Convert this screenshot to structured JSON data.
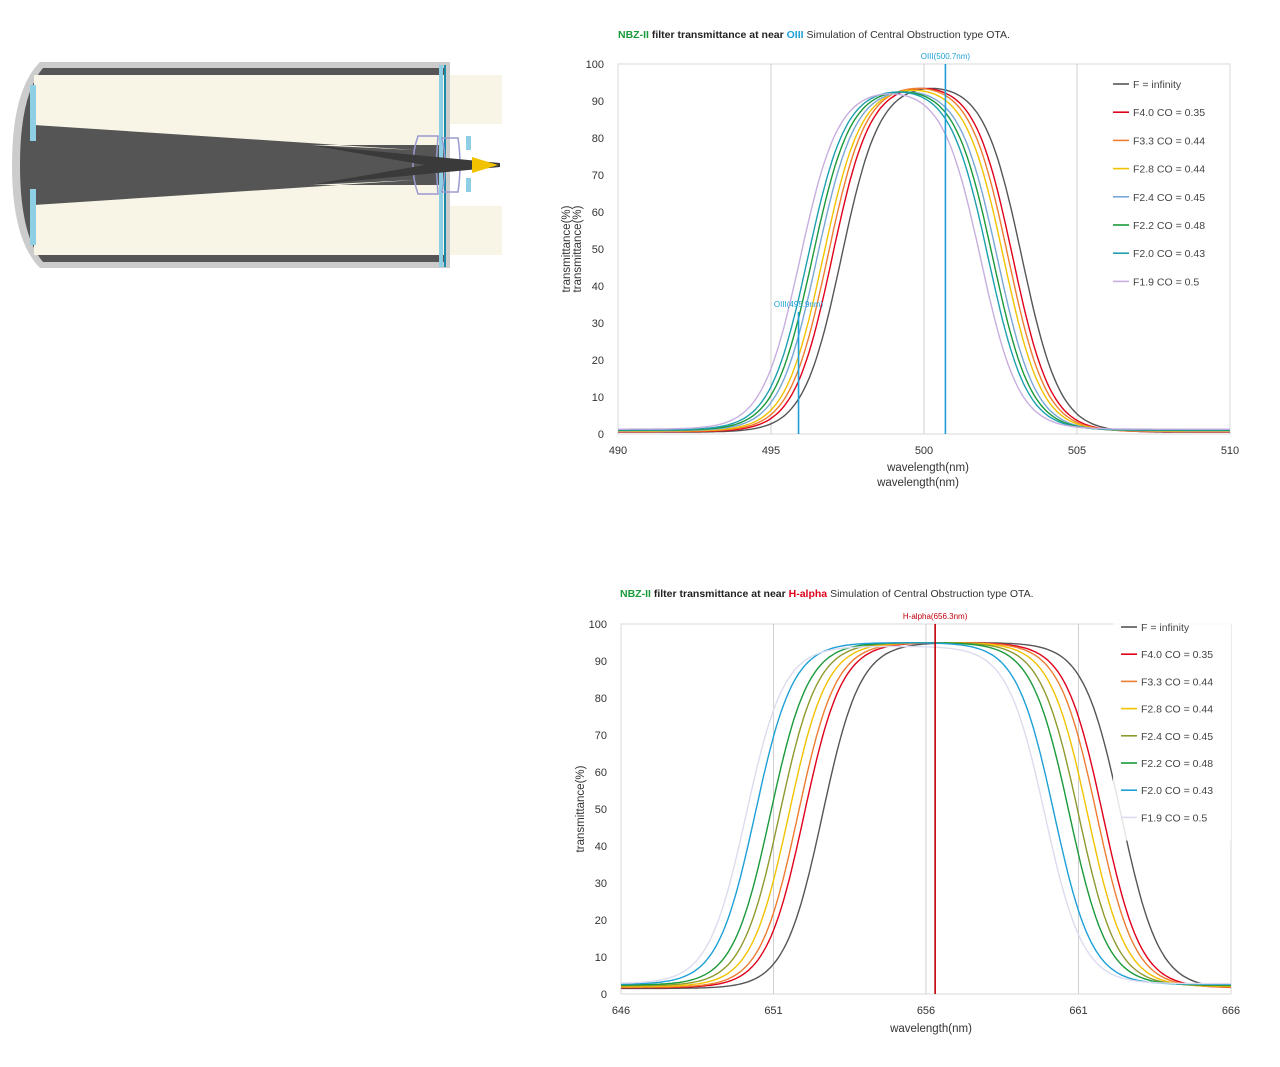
{
  "telescope": {
    "colors": {
      "tube": "#555555",
      "rim": "#cccccc",
      "beam": "#f8f5e6",
      "glass": "#8fcfe6",
      "focus": "#f2c200",
      "lens": "#9a9ad0"
    }
  },
  "chart_data": [
    {
      "type": "line",
      "title_parts": [
        {
          "text": "NBZ-II",
          "color": "#1a9a3a",
          "bold": true
        },
        {
          "text": " filter transmittance at near ",
          "color": "#222222",
          "bold": true
        },
        {
          "text": "OIII",
          "color": "#1ea0d6",
          "bold": true
        },
        {
          "text": "   Simulation of Central Obstruction type OTA.",
          "color": "#333333",
          "bold": false
        }
      ],
      "xlabel": "wavelength(nm)",
      "xlabel_repeat": "wavelength(nm)",
      "ylabel": "transmittance(%)",
      "ylabel_ghost": "transmittance(%)",
      "xlim": [
        490,
        510
      ],
      "ylim": [
        0,
        100
      ],
      "xticks": [
        490,
        495,
        500,
        505,
        510
      ],
      "yticks": [
        0,
        10,
        20,
        30,
        40,
        50,
        60,
        70,
        80,
        90,
        100
      ],
      "grid": "vertical",
      "legend_position": "right",
      "annotations": [
        {
          "label": "OIII(500.7nm)",
          "x": 500.7,
          "top": 100,
          "color": "#1ea0d6"
        },
        {
          "label": "OIII(495.9nm)",
          "x": 495.9,
          "top": 33,
          "color": "#1ea0d6"
        }
      ],
      "series": [
        {
          "name": "F = infinity",
          "color": "#555555",
          "center": 500.25,
          "peak": 95,
          "halfwidth": 2.95,
          "base": 0.5
        },
        {
          "name": "F4.0 CO = 0.35",
          "color": "#e0001b",
          "center": 499.95,
          "peak": 95,
          "halfwidth": 2.95,
          "base": 0.6
        },
        {
          "name": "F3.3 CO = 0.44",
          "color": "#ed7d31",
          "center": 499.8,
          "peak": 95,
          "halfwidth": 2.95,
          "base": 0.7
        },
        {
          "name": "F2.8 CO = 0.44",
          "color": "#f2c200",
          "center": 499.65,
          "peak": 94.5,
          "halfwidth": 2.95,
          "base": 0.8
        },
        {
          "name": "F2.4 CO = 0.45",
          "color": "#7aa7d6",
          "center": 499.45,
          "peak": 94,
          "halfwidth": 2.95,
          "base": 0.9
        },
        {
          "name": "F2.2 CO = 0.48",
          "color": "#1a9a3a",
          "center": 499.3,
          "peak": 94,
          "halfwidth": 2.95,
          "base": 1.0
        },
        {
          "name": "F2.0 CO = 0.43",
          "color": "#1ea0b0",
          "center": 499.15,
          "peak": 94,
          "halfwidth": 2.95,
          "base": 1.1
        },
        {
          "name": "F1.9 CO = 0.5",
          "color": "#c8aee0",
          "center": 498.9,
          "peak": 93.5,
          "halfwidth": 2.95,
          "base": 1.3
        }
      ]
    },
    {
      "type": "line",
      "title_parts": [
        {
          "text": "NBZ-II",
          "color": "#1a9a3a",
          "bold": true
        },
        {
          "text": " filter transmittance at near ",
          "color": "#222222",
          "bold": true
        },
        {
          "text": "H-alpha",
          "color": "#e0001b",
          "bold": true
        },
        {
          "text": "   Simulation of Central Obstruction type OTA.",
          "color": "#333333",
          "bold": false
        }
      ],
      "xlabel": "wavelength(nm)",
      "ylabel": "transmittance(%)",
      "xlim": [
        646,
        666
      ],
      "ylim": [
        0,
        100
      ],
      "xticks": [
        646,
        651,
        656,
        661,
        666
      ],
      "yticks": [
        0,
        10,
        20,
        30,
        40,
        50,
        60,
        70,
        80,
        90,
        100
      ],
      "grid": "vertical",
      "legend_position": "right",
      "annotations": [
        {
          "label": "H-alpha(656.3nm)",
          "x": 656.3,
          "top": 100,
          "color": "#c0000b"
        }
      ],
      "series": [
        {
          "name": "F = infinity",
          "color": "#555555",
          "center": 657.5,
          "peak": 95,
          "halfwidth": 4.9,
          "base": 1.5
        },
        {
          "name": "F4.0 CO = 0.35",
          "color": "#e0001b",
          "center": 656.9,
          "peak": 95,
          "halfwidth": 4.9,
          "base": 1.7
        },
        {
          "name": "F3.3 CO = 0.44",
          "color": "#ed7d31",
          "center": 656.7,
          "peak": 95,
          "halfwidth": 4.9,
          "base": 1.8
        },
        {
          "name": "F2.8 CO = 0.44",
          "color": "#f2c200",
          "center": 656.4,
          "peak": 95,
          "halfwidth": 4.9,
          "base": 2.0
        },
        {
          "name": "F2.4 CO = 0.45",
          "color": "#8f9a2e",
          "center": 656.1,
          "peak": 95,
          "halfwidth": 4.9,
          "base": 2.2
        },
        {
          "name": "F2.2 CO = 0.48",
          "color": "#1a9a3a",
          "center": 655.8,
          "peak": 95,
          "halfwidth": 4.9,
          "base": 2.4
        },
        {
          "name": "F2.0 CO = 0.43",
          "color": "#1ea0d6",
          "center": 655.3,
          "peak": 95,
          "halfwidth": 4.9,
          "base": 2.6
        },
        {
          "name": "F1.9 CO = 0.5",
          "color": "#dcdcef",
          "center": 655.0,
          "peak": 94,
          "halfwidth": 4.9,
          "base": 2.8
        }
      ]
    }
  ]
}
